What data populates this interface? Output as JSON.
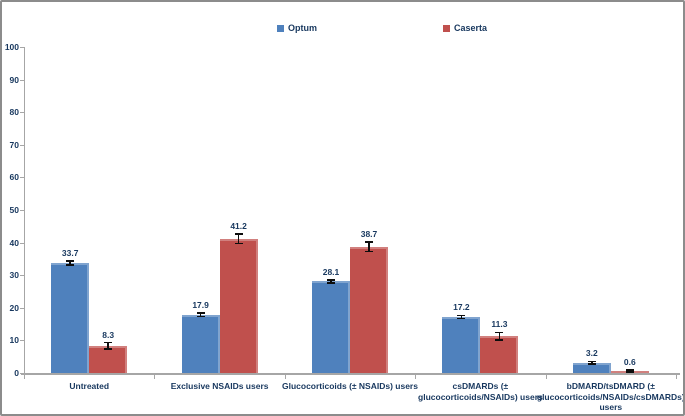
{
  "frame": {
    "background": "#FFFFFF",
    "border_color": "#8C8C8C"
  },
  "colors": {
    "text": "#17375E",
    "axis": "#A6A6A6",
    "error_bar": "#0D0D0D",
    "optum_blue": "#4F81BD",
    "caserta_red": "#C0504D"
  },
  "legend": {
    "position": "top",
    "items": [
      {
        "label": "Optum",
        "color": "#4F81BD"
      },
      {
        "label": "Caserta",
        "color": "#C0504D"
      }
    ]
  },
  "chart_data": {
    "type": "bar",
    "title": "",
    "xlabel": "",
    "ylabel": "",
    "grid": false,
    "legend_position": "top",
    "value_labels": true,
    "error_bars": true,
    "ylim": [
      0,
      100
    ],
    "y_step": 10,
    "y_tick_labels": [
      "0",
      "10",
      "20",
      "30",
      "40",
      "50",
      "60",
      "70",
      "80",
      "90",
      "100"
    ],
    "categories": [
      "Untreated",
      "Exclusive NSAIDs users",
      "Glucocorticoids (± NSAIDs) users",
      "csDMARDs (± glucocorticoids/NSAIDs) users",
      "bDMARD/tsDMARD (± glucocorticoids/NSAIDs/csDMARDs) users"
    ],
    "category_label_lines": [
      "Untreated",
      "Exclusive NSAIDs users",
      "Glucocorticoids (± NSAIDs) users",
      "csDMARDs (±\nglucocorticoids/NSAIDs) users",
      "bDMARD/tsDMARD (±\nglucocorticoids/NSAIDs/csDMARDs)\nusers"
    ],
    "series": [
      {
        "name": "Optum",
        "color": "#4F81BD",
        "values": [
          33.7,
          17.9,
          28.1,
          17.2,
          3.2
        ],
        "errors": [
          0.6,
          0.5,
          0.5,
          0.5,
          0.4
        ]
      },
      {
        "name": "Caserta",
        "color": "#C0504D",
        "values": [
          8.3,
          41.2,
          38.7,
          11.3,
          0.6
        ],
        "errors": [
          1.0,
          1.5,
          1.5,
          1.2,
          0.3
        ]
      }
    ]
  }
}
